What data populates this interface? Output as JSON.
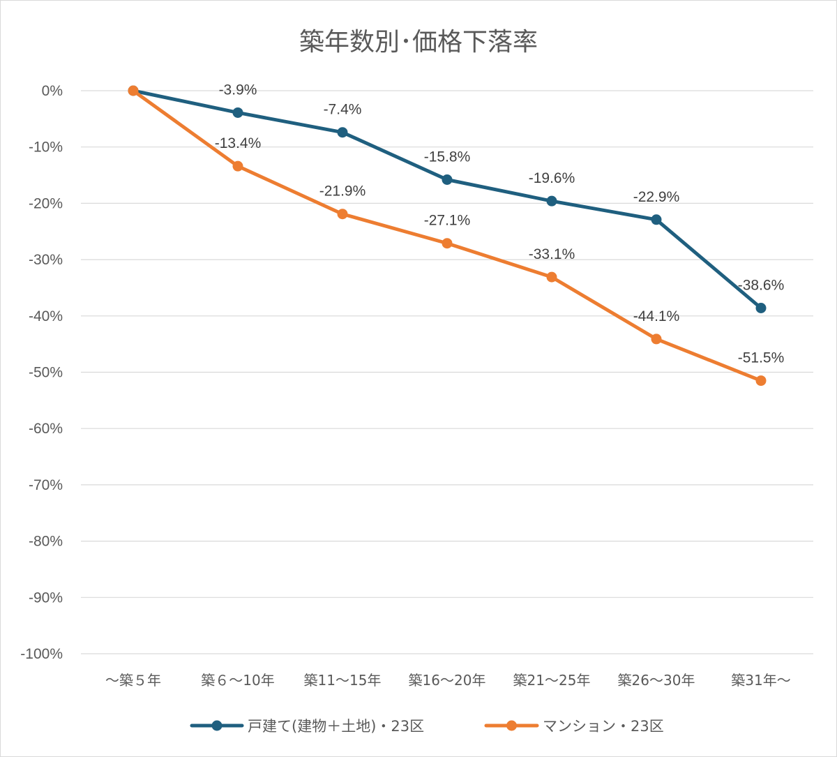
{
  "chart_data": {
    "type": "line",
    "title": "築年数別･価格下落率",
    "categories": [
      "～築５年",
      "築６～10年",
      "築11～15年",
      "築16～20年",
      "築21～25年",
      "築26～30年",
      "築31年～"
    ],
    "y_ticks": [
      "0%",
      "-10%",
      "-20%",
      "-30%",
      "-40%",
      "-50%",
      "-60%",
      "-70%",
      "-80%",
      "-90%",
      "-100%"
    ],
    "ylim": [
      -100,
      0
    ],
    "grid": true,
    "legend_position": "bottom",
    "series": [
      {
        "name": "戸建て(建物＋土地)・23区",
        "color": "#1f5f7f",
        "values": [
          0,
          -3.9,
          -7.4,
          -15.8,
          -19.6,
          -22.9,
          -38.6
        ],
        "labels": [
          "",
          "-3.9%",
          "-7.4%",
          "-15.8%",
          "-19.6%",
          "-22.9%",
          "-38.6%"
        ]
      },
      {
        "name": "マンション・23区",
        "color": "#ed7d31",
        "values": [
          0,
          -13.4,
          -21.9,
          -27.1,
          -33.1,
          -44.1,
          -51.5
        ],
        "labels": [
          "",
          "-13.4%",
          "-21.9%",
          "-27.1%",
          "-33.1%",
          "-44.1%",
          "-51.5%"
        ]
      }
    ]
  }
}
